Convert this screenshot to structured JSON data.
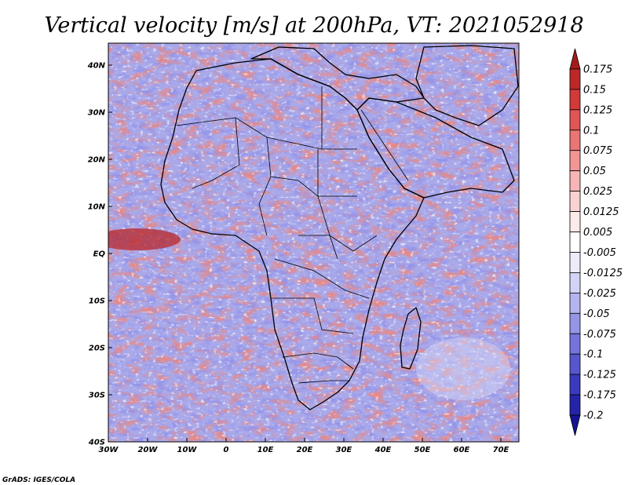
{
  "title": "Vertical velocity [m/s] at 200hPa, VT: 2021052918",
  "credit": "GrADS: IGES/COLA",
  "lat_ticks": [
    "40N",
    "30N",
    "20N",
    "10N",
    "EQ",
    "10S",
    "20S",
    "30S",
    "40S"
  ],
  "lon_ticks": [
    "30W",
    "20W",
    "10W",
    "0",
    "10E",
    "20E",
    "30E",
    "40E",
    "50E",
    "60E",
    "70E"
  ],
  "colorbar": {
    "labels": [
      "0.175",
      "0.15",
      "0.125",
      "0.1",
      "0.075",
      "0.05",
      "0.025",
      "0.0125",
      "0.005",
      "-0.005",
      "-0.0125",
      "-0.025",
      "-0.05",
      "-0.075",
      "-0.1",
      "-0.125",
      "-0.175",
      "-0.2"
    ],
    "colors": [
      "#a31b1b",
      "#bc2828",
      "#d23a3a",
      "#e05555",
      "#ea7575",
      "#f29595",
      "#f7b5b5",
      "#fbd2d2",
      "#fdeaea",
      "#ffffff",
      "#ececfb",
      "#d3d3f6",
      "#b4b4ef",
      "#9595e6",
      "#7474dc",
      "#5656cf",
      "#3a3abf",
      "#2424a8",
      "#141494"
    ]
  },
  "colors": {
    "positive": "#e05555",
    "negative": "#5656cf",
    "coast": "#000000"
  }
}
